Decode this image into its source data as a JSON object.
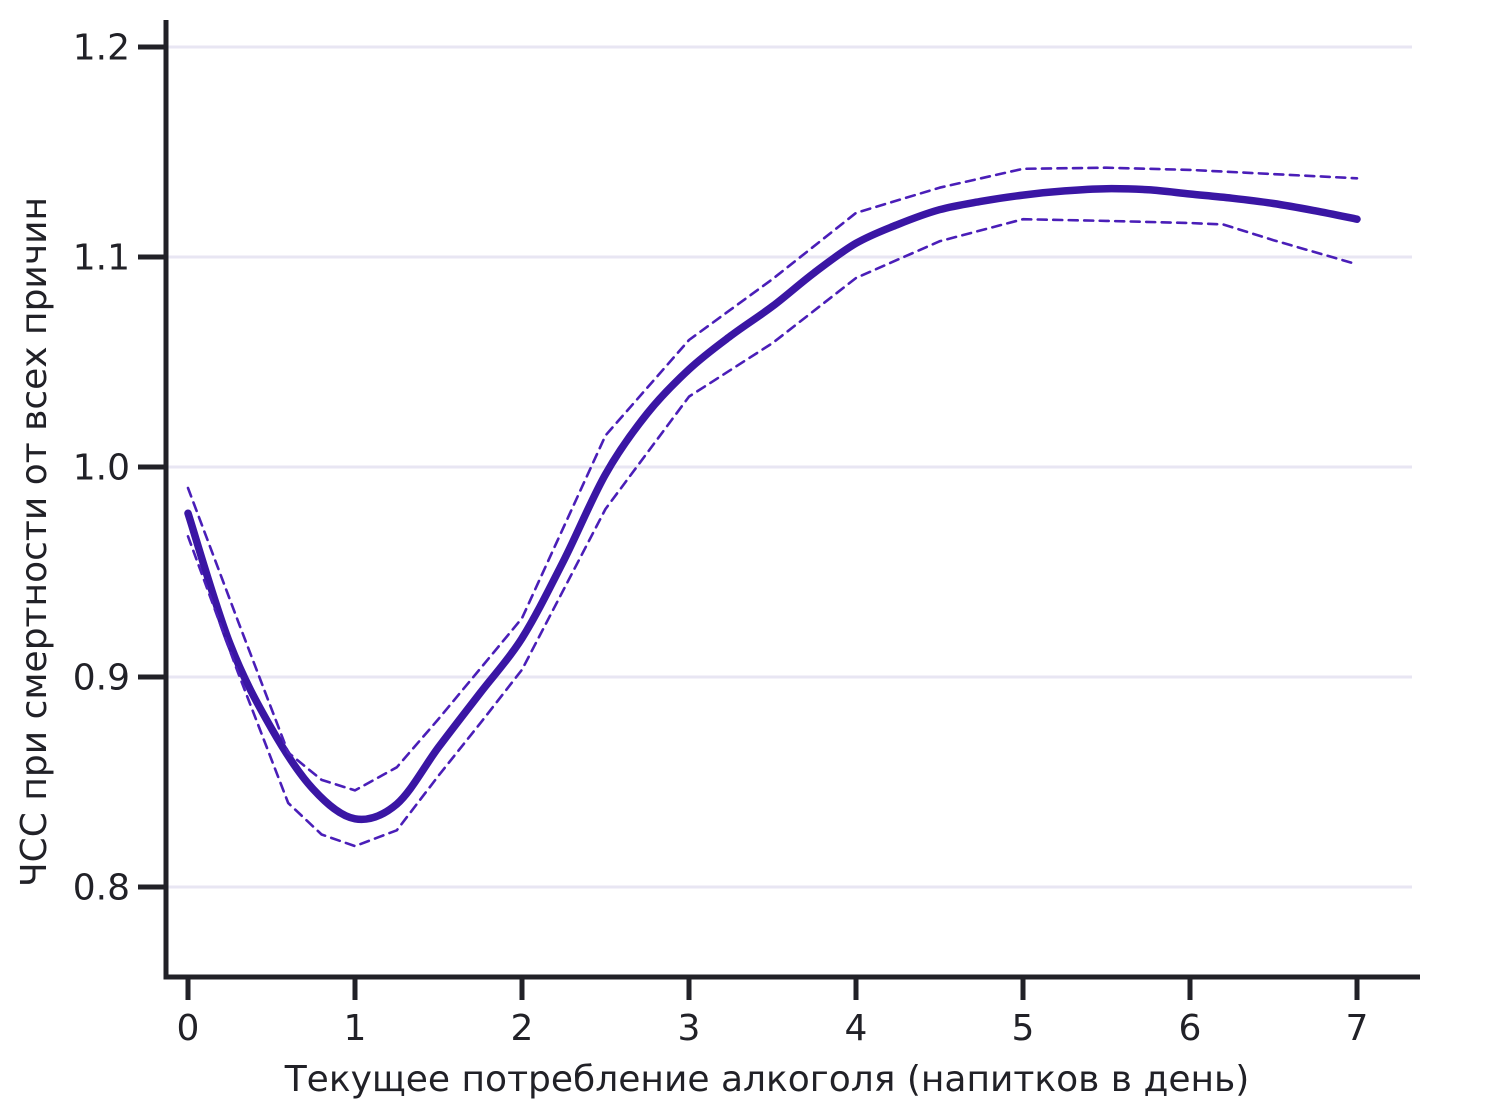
{
  "figure": {
    "background": "#ffffff",
    "axis_color": "#212127",
    "grid_color": "#e8e6f3",
    "tick_label_color": "#212127",
    "solid_line_color": "#3a16a4",
    "dashed_line_color": "#4a1eb8"
  },
  "chart_data": {
    "type": "line",
    "title": "",
    "xlabel": "Текущее потребление алкоголя (напитков в день)",
    "ylabel": "ЧСС при смертности от всех причин",
    "x_ticks": [
      "0",
      "1",
      "2",
      "3",
      "4",
      "5",
      "6",
      "7"
    ],
    "x_tick_values": [
      0,
      1,
      2,
      3,
      4,
      5,
      6,
      7
    ],
    "y_ticks": [
      "0.8",
      "0.9",
      "1.0",
      "1.1",
      "1.2"
    ],
    "y_tick_values": [
      0.8,
      0.9,
      1.0,
      1.1,
      1.2
    ],
    "xlim": [
      -0.13,
      7.38
    ],
    "ylim": [
      0.757,
      1.213
    ],
    "grid": "horizontal-only",
    "legend": "none",
    "series": [
      {
        "name": "estimate",
        "style": "solid",
        "color": "#3a16a4",
        "points": [
          [
            0,
            0.978
          ],
          [
            0.25,
            0.916
          ],
          [
            0.5,
            0.8755
          ],
          [
            0.75,
            0.8465
          ],
          [
            1,
            0.8325
          ],
          [
            1.25,
            0.8395
          ],
          [
            1.5,
            0.8665
          ],
          [
            1.75,
            0.8925
          ],
          [
            2,
            0.9185
          ],
          [
            2.25,
            0.9555
          ],
          [
            2.5,
            0.9965
          ],
          [
            2.75,
            1.0255
          ],
          [
            3,
            1.0465
          ],
          [
            3.25,
            1.0625
          ],
          [
            3.5,
            1.0765
          ],
          [
            3.75,
            1.0925
          ],
          [
            4,
            1.1065
          ],
          [
            4.25,
            1.1155
          ],
          [
            4.5,
            1.1225
          ],
          [
            4.75,
            1.1265
          ],
          [
            5,
            1.1295
          ],
          [
            5.25,
            1.1315
          ],
          [
            5.5,
            1.1325
          ],
          [
            5.75,
            1.132
          ],
          [
            6,
            1.13
          ],
          [
            6.25,
            1.128
          ],
          [
            6.5,
            1.1255
          ],
          [
            6.75,
            1.122
          ],
          [
            7,
            1.118
          ]
        ]
      },
      {
        "name": "ci-upper",
        "style": "dashed",
        "color": "#4a1eb8",
        "points": [
          [
            0,
            0.99
          ],
          [
            0.3,
            0.9265
          ],
          [
            0.6,
            0.864
          ],
          [
            0.8,
            0.851
          ],
          [
            1,
            0.846
          ],
          [
            1.25,
            0.857
          ],
          [
            1.5,
            0.88
          ],
          [
            1.75,
            0.904
          ],
          [
            2,
            0.928
          ],
          [
            2.5,
            1.015
          ],
          [
            3,
            1.0605
          ],
          [
            3.5,
            1.0895
          ],
          [
            4,
            1.121
          ],
          [
            4.5,
            1.133
          ],
          [
            5,
            1.142
          ],
          [
            5.5,
            1.1425
          ],
          [
            6,
            1.1415
          ],
          [
            6.5,
            1.1395
          ],
          [
            7,
            1.1375
          ]
        ]
      },
      {
        "name": "ci-lower",
        "style": "dashed",
        "color": "#4a1eb8",
        "points": [
          [
            0,
            0.967
          ],
          [
            0.3,
            0.902
          ],
          [
            0.6,
            0.84
          ],
          [
            0.8,
            0.825
          ],
          [
            1,
            0.8195
          ],
          [
            1.25,
            0.827
          ],
          [
            1.5,
            0.853
          ],
          [
            1.75,
            0.878
          ],
          [
            2,
            0.9035
          ],
          [
            2.5,
            0.98
          ],
          [
            3,
            1.0335
          ],
          [
            3.5,
            1.059
          ],
          [
            4,
            1.09
          ],
          [
            4.5,
            1.1075
          ],
          [
            5,
            1.118
          ],
          [
            5.5,
            1.1172
          ],
          [
            6,
            1.1162
          ],
          [
            6.2,
            1.1155
          ],
          [
            6.5,
            1.108
          ],
          [
            7,
            1.0965
          ]
        ]
      }
    ]
  }
}
